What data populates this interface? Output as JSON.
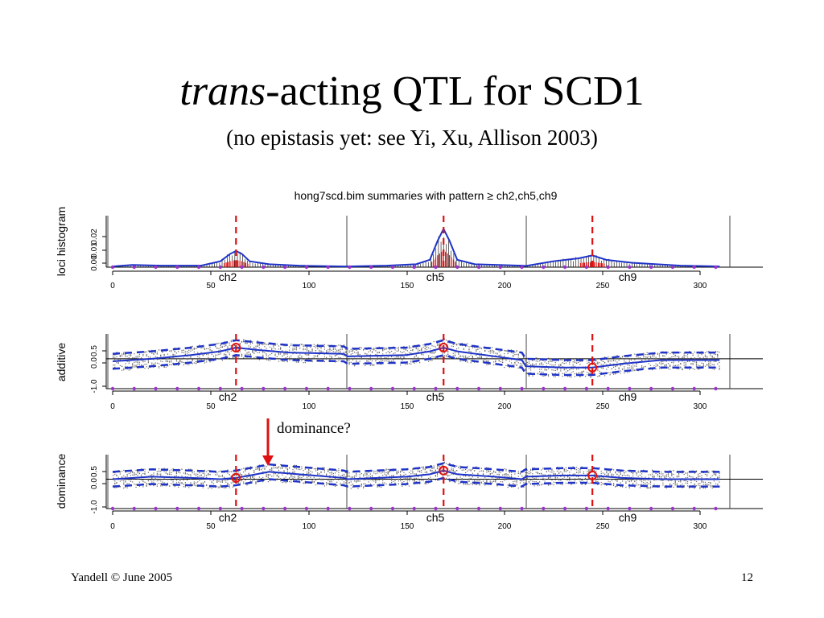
{
  "slide": {
    "title_italic": "trans",
    "title_rest": "-acting QTL for SCD1",
    "subtitle": "(no epistasis yet: see Yi, Xu, Allison 2003)",
    "footer_left": "Yandell © June 2005",
    "footer_right": "12"
  },
  "annotation": {
    "text": "dominance?",
    "arrow_color": "#e01010"
  },
  "colors": {
    "mean_line": "#1f33c8",
    "interval": "#1f33c8",
    "marker_dots": "#9933cc",
    "estimate": "#e01010",
    "samples": "#666666",
    "histogram": "#000000"
  },
  "chart_data": [
    {
      "type": "line",
      "title": "hong7scd.bim summaries with pattern ≥ ch2,ch5,ch9",
      "ylabel": "loci histogram",
      "xlim": [
        0,
        310
      ],
      "ylim": [
        0,
        0.035
      ],
      "x_ticks": [
        "0",
        "50",
        "100",
        "150",
        "200",
        "250",
        "300"
      ],
      "y_ticks": [
        "0.00",
        "0.01",
        "0.02"
      ],
      "chromosome_labels": [
        "ch2",
        "ch5",
        "ch9"
      ],
      "chromosome_boundaries": [
        119,
        210
      ],
      "qtl_positions": [
        63,
        169,
        245
      ],
      "series": [
        {
          "values": [
            [
              0,
              0.0005
            ],
            [
              10,
              0.0015
            ],
            [
              25,
              0.001
            ],
            [
              45,
              0.001
            ],
            [
              55,
              0.004
            ],
            [
              60,
              0.009
            ],
            [
              63,
              0.011
            ],
            [
              66,
              0.009
            ],
            [
              70,
              0.004
            ],
            [
              80,
              0.002
            ],
            [
              95,
              0.001
            ],
            [
              118,
              0.0005
            ],
            [
              120,
              0.0005
            ],
            [
              140,
              0.001
            ],
            [
              155,
              0.002
            ],
            [
              162,
              0.005
            ],
            [
              166,
              0.018
            ],
            [
              169,
              0.026
            ],
            [
              172,
              0.018
            ],
            [
              176,
              0.005
            ],
            [
              185,
              0.002
            ],
            [
              209,
              0.001
            ],
            [
              211,
              0.0008
            ],
            [
              225,
              0.004
            ],
            [
              238,
              0.006
            ],
            [
              245,
              0.008
            ],
            [
              252,
              0.005
            ],
            [
              265,
              0.003
            ],
            [
              290,
              0.001
            ],
            [
              310,
              0.0005
            ]
          ]
        }
      ]
    },
    {
      "type": "scatter",
      "ylabel": "additive",
      "xlim": [
        0,
        310
      ],
      "ylim": [
        -1.2,
        1.0
      ],
      "x_ticks": [
        "0",
        "50",
        "100",
        "150",
        "200",
        "250",
        "300"
      ],
      "y_ticks": [
        "-1.0",
        "0.0",
        "0.5"
      ],
      "chromosome_labels": [
        "ch2",
        "ch5",
        "ch9"
      ],
      "qtl_positions": [
        63,
        169,
        245
      ],
      "estimates": [
        [
          63,
          0.45
        ],
        [
          169,
          0.45
        ],
        [
          245,
          -0.35
        ]
      ],
      "series": [
        {
          "values": [
            [
              0,
              -0.1
            ],
            [
              20,
              0.0
            ],
            [
              40,
              0.15
            ],
            [
              55,
              0.3
            ],
            [
              63,
              0.45
            ],
            [
              75,
              0.35
            ],
            [
              90,
              0.25
            ],
            [
              118,
              0.2
            ],
            [
              120,
              0.1
            ],
            [
              150,
              0.15
            ],
            [
              162,
              0.3
            ],
            [
              169,
              0.45
            ],
            [
              176,
              0.3
            ],
            [
              195,
              0.1
            ],
            [
              209,
              -0.05
            ],
            [
              211,
              -0.3
            ],
            [
              230,
              -0.35
            ],
            [
              245,
              -0.35
            ],
            [
              260,
              -0.2
            ],
            [
              280,
              -0.05
            ],
            [
              310,
              -0.05
            ]
          ]
        }
      ]
    },
    {
      "type": "scatter",
      "ylabel": "dominance",
      "xlim": [
        0,
        310
      ],
      "ylim": [
        -1.2,
        1.0
      ],
      "x_ticks": [
        "0",
        "50",
        "100",
        "150",
        "200",
        "250",
        "300"
      ],
      "y_ticks": [
        "-1.0",
        "0.0",
        "0.5"
      ],
      "chromosome_labels": [
        "ch2",
        "ch5",
        "ch9"
      ],
      "qtl_positions": [
        63,
        169,
        245
      ],
      "estimates": [
        [
          63,
          0.05
        ],
        [
          169,
          0.35
        ],
        [
          245,
          0.15
        ]
      ],
      "series": [
        {
          "values": [
            [
              0,
              0.0
            ],
            [
              20,
              0.1
            ],
            [
              40,
              0.05
            ],
            [
              55,
              0.0
            ],
            [
              63,
              0.05
            ],
            [
              70,
              0.15
            ],
            [
              80,
              0.3
            ],
            [
              95,
              0.2
            ],
            [
              118,
              0.05
            ],
            [
              120,
              0.0
            ],
            [
              150,
              0.1
            ],
            [
              162,
              0.2
            ],
            [
              169,
              0.35
            ],
            [
              176,
              0.2
            ],
            [
              195,
              0.1
            ],
            [
              209,
              0.0
            ],
            [
              211,
              0.1
            ],
            [
              230,
              0.15
            ],
            [
              245,
              0.15
            ],
            [
              260,
              0.05
            ],
            [
              280,
              0.0
            ],
            [
              310,
              0.0
            ]
          ]
        }
      ]
    }
  ]
}
